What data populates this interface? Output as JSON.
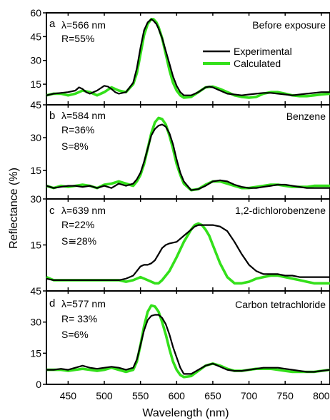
{
  "chart_data": {
    "type": "line",
    "figure": {
      "xlabel": "Wavelength (nm)",
      "ylabel": "Reflectance (%)",
      "xlim": [
        420,
        812
      ],
      "xticks": [
        450,
        500,
        550,
        600,
        650,
        700,
        750,
        800
      ],
      "x_tick_labels": [
        "450",
        "500",
        "550",
        "600",
        "650",
        "700",
        "750",
        "800"
      ],
      "legend": {
        "placement": "top-right of panel a",
        "entries": [
          {
            "label": "Experimental",
            "color": "#000000"
          },
          {
            "label": "Calculated",
            "color": "#33e01a"
          }
        ]
      }
    },
    "panels": [
      {
        "letter": "a",
        "condition": "Before exposure",
        "annotations": [
          "λ=566 nm",
          "R=55%"
        ],
        "ylim": [
          2,
          60
        ],
        "yticks": [
          15,
          30,
          45,
          60
        ],
        "y_tick_labels": [
          "15",
          "30",
          "45",
          "60"
        ],
        "series": [
          {
            "name": "Experimental",
            "color": "#000000",
            "x": [
              420,
              430,
              440,
              450,
              460,
              465,
              470,
              475,
              480,
              490,
              500,
              505,
              510,
              515,
              520,
              530,
              540,
              545,
              550,
              555,
              560,
              565,
              568,
              572,
              575,
              580,
              585,
              590,
              595,
              600,
              605,
              610,
              620,
              630,
              640,
              645,
              650,
              660,
              670,
              680,
              690,
              700,
              710,
              720,
              730,
              740,
              750,
              760,
              770,
              780,
              790,
              800,
              812
            ],
            "y": [
              8,
              9,
              9.5,
              10,
              11,
              13,
              12,
              10,
              9,
              11,
              14,
              13.5,
              12,
              10,
              9,
              10,
              16,
              25,
              38,
              49,
              54,
              56,
              55,
              53,
              50,
              44,
              36,
              28,
              20,
              14,
              10,
              8,
              8,
              10,
              13,
              13.5,
              13,
              11,
              9,
              8.5,
              8,
              8.5,
              9,
              9.5,
              9.5,
              9,
              8.5,
              8,
              8.5,
              9,
              9.5,
              10,
              10
            ]
          },
          {
            "name": "Calculated",
            "color": "#33e01a",
            "x": [
              420,
              430,
              440,
              450,
              460,
              470,
              480,
              490,
              500,
              510,
              520,
              530,
              540,
              545,
              550,
              555,
              560,
              565,
              568,
              572,
              575,
              580,
              585,
              590,
              595,
              600,
              605,
              610,
              620,
              630,
              640,
              650,
              660,
              670,
              680,
              690,
              700,
              710,
              720,
              730,
              740,
              750,
              760,
              770,
              780,
              790,
              800,
              812
            ],
            "y": [
              8,
              9,
              9,
              8,
              9,
              11,
              10,
              8,
              10,
              13,
              11,
              10,
              15,
              22,
              34,
              46,
              53,
              56,
              56,
              54,
              51,
              44,
              34,
              24,
              16,
              11,
              8,
              6.5,
              7,
              10,
              13,
              13.5,
              12,
              10,
              8,
              7,
              6.5,
              7,
              9,
              10,
              10,
              9,
              8,
              7.5,
              7.5,
              8,
              8.5,
              9
            ]
          }
        ]
      },
      {
        "letter": "b",
        "condition": "Benzene",
        "annotations": [
          "λ=584 nm",
          "R=36%",
          "S=8%"
        ],
        "ylim": [
          2,
          45
        ],
        "yticks": [
          15,
          30,
          45
        ],
        "y_tick_labels": [
          "15",
          "30",
          "45"
        ],
        "series": [
          {
            "name": "Experimental",
            "color": "#000000",
            "x": [
              420,
              430,
              440,
              450,
              460,
              470,
              480,
              490,
              500,
              510,
              520,
              530,
              540,
              545,
              550,
              555,
              560,
              565,
              570,
              575,
              580,
              585,
              590,
              595,
              600,
              605,
              610,
              620,
              630,
              640,
              650,
              660,
              670,
              680,
              690,
              700,
              710,
              720,
              730,
              740,
              750,
              760,
              770,
              780,
              790,
              800,
              812
            ],
            "y": [
              8,
              7,
              7.5,
              8,
              8,
              7.5,
              8,
              7,
              8,
              7,
              9,
              8,
              9,
              11,
              14,
              19,
              25,
              31,
              34,
              35.5,
              36,
              35,
              32,
              27,
              20,
              14,
              10,
              6,
              6.5,
              8,
              10,
              10.5,
              10,
              8.5,
              7.5,
              7,
              7,
              7.5,
              8,
              8.5,
              8.5,
              8,
              7.5,
              7,
              7,
              7,
              7
            ]
          },
          {
            "name": "Calculated",
            "color": "#33e01a",
            "x": [
              420,
              430,
              440,
              450,
              460,
              470,
              480,
              490,
              500,
              510,
              520,
              530,
              540,
              545,
              550,
              555,
              560,
              565,
              570,
              575,
              580,
              585,
              590,
              595,
              600,
              605,
              610,
              620,
              630,
              640,
              650,
              660,
              670,
              680,
              690,
              700,
              710,
              720,
              730,
              740,
              750,
              760,
              770,
              780,
              790,
              800,
              812
            ],
            "y": [
              8,
              7,
              8,
              7.5,
              8,
              8.5,
              8,
              7,
              8.5,
              9,
              10,
              9,
              8,
              10,
              13,
              18,
              25,
              32,
              37,
              39,
              38.5,
              36,
              31,
              25,
              18,
              13,
              9,
              6,
              6.5,
              8.5,
              10,
              10,
              9,
              8,
              7,
              7,
              7.5,
              8,
              8.5,
              8.5,
              8,
              7.5,
              7.5,
              7.5,
              8,
              8,
              8
            ]
          }
        ]
      },
      {
        "letter": "c",
        "condition": "1,2-dichlorobenzene",
        "annotations": [
          "λ=639 nm",
          "R=22%",
          "S≅28%"
        ],
        "ylim": [
          0,
          30
        ],
        "yticks": [
          15,
          30
        ],
        "y_tick_labels": [
          "15",
          "30"
        ],
        "series": [
          {
            "name": "Experimental",
            "color": "#000000",
            "x": [
              420,
              430,
              440,
              450,
              460,
              470,
              480,
              490,
              500,
              510,
              520,
              530,
              540,
              545,
              550,
              555,
              560,
              565,
              570,
              575,
              580,
              585,
              590,
              600,
              610,
              620,
              625,
              630,
              635,
              640,
              645,
              650,
              660,
              670,
              680,
              690,
              700,
              710,
              720,
              730,
              740,
              750,
              760,
              770,
              780,
              790,
              800,
              812
            ],
            "y": [
              4,
              3.5,
              3.5,
              3.5,
              3.5,
              3.5,
              3.5,
              3.5,
              3.5,
              3.5,
              3.5,
              4,
              5,
              6.5,
              8,
              8.5,
              8.5,
              9,
              10,
              12,
              14,
              15,
              15.5,
              16,
              18,
              20,
              21,
              21.5,
              21.5,
              21.5,
              21.5,
              21.5,
              21,
              19.5,
              16,
              12,
              8.5,
              6.5,
              5.5,
              5.5,
              5.5,
              5,
              5,
              4.5,
              4.5,
              4.5,
              4.5,
              4.5
            ]
          },
          {
            "name": "Calculated",
            "color": "#33e01a",
            "x": [
              420,
              430,
              440,
              450,
              460,
              470,
              480,
              490,
              500,
              510,
              520,
              530,
              540,
              550,
              560,
              570,
              575,
              580,
              590,
              600,
              610,
              620,
              625,
              630,
              635,
              640,
              645,
              650,
              655,
              660,
              670,
              680,
              690,
              700,
              710,
              720,
              730,
              740,
              750,
              760,
              770,
              780,
              790,
              800,
              812
            ],
            "y": [
              4.5,
              3.5,
              3.5,
              3.5,
              3.5,
              3.5,
              3.5,
              3.5,
              3.5,
              3.5,
              3.5,
              3,
              3.5,
              4.5,
              3.5,
              2.5,
              2.5,
              3.5,
              6.5,
              11,
              16,
              20,
              21.5,
              22,
              21.5,
              20,
              18,
              15,
              12,
              9,
              4.5,
              2.5,
              2.5,
              3,
              4,
              4.5,
              5,
              5,
              4.5,
              4,
              3.5,
              3,
              2.5,
              2.5,
              2.5
            ]
          }
        ]
      },
      {
        "letter": "d",
        "condition": "Carbon tetrachloride",
        "annotations": [
          "λ=577 nm",
          "R= 33%",
          "S=6%"
        ],
        "ylim": [
          0,
          45
        ],
        "yticks": [
          0,
          15,
          30,
          45
        ],
        "y_tick_labels": [
          "0",
          "15",
          "30",
          "45"
        ],
        "series": [
          {
            "name": "Experimental",
            "color": "#000000",
            "x": [
              420,
              430,
              440,
              450,
              460,
              470,
              480,
              490,
              500,
              510,
              520,
              530,
              540,
              545,
              550,
              555,
              560,
              565,
              570,
              575,
              580,
              585,
              590,
              595,
              600,
              605,
              610,
              620,
              630,
              640,
              650,
              660,
              670,
              680,
              690,
              700,
              710,
              720,
              730,
              740,
              750,
              760,
              770,
              780,
              790,
              800,
              812
            ],
            "y": [
              7,
              7,
              7.5,
              7,
              8,
              9,
              8,
              7.5,
              8,
              8.5,
              8,
              7,
              8,
              12,
              19,
              26,
              31,
              33,
              33.5,
              33.5,
              32,
              29,
              24,
              18,
              13,
              8,
              5,
              5,
              7,
              9,
              10,
              8.5,
              7,
              6.5,
              6.5,
              7,
              7.5,
              8,
              8,
              8,
              7.5,
              7,
              6.5,
              6,
              6,
              6.5,
              7
            ]
          },
          {
            "name": "Calculated",
            "color": "#33e01a",
            "x": [
              420,
              430,
              440,
              450,
              460,
              470,
              480,
              490,
              500,
              510,
              520,
              530,
              540,
              545,
              550,
              555,
              560,
              565,
              570,
              575,
              580,
              585,
              590,
              595,
              600,
              605,
              610,
              620,
              630,
              640,
              650,
              660,
              670,
              680,
              690,
              700,
              710,
              720,
              730,
              740,
              750,
              760,
              770,
              780,
              790,
              800,
              812
            ],
            "y": [
              7,
              7,
              7,
              6.5,
              7,
              7.5,
              7,
              6.5,
              7,
              8,
              7,
              6,
              7,
              11,
              19,
              28,
              35,
              38,
              37.5,
              35,
              30,
              24,
              17,
              11,
              7,
              4.5,
              3.5,
              4,
              6.5,
              9,
              10,
              9,
              7.5,
              6.5,
              6.5,
              7,
              7.5,
              7.5,
              7.5,
              7,
              6.5,
              6,
              6,
              6,
              6,
              6.5,
              7
            ]
          }
        ]
      }
    ]
  }
}
